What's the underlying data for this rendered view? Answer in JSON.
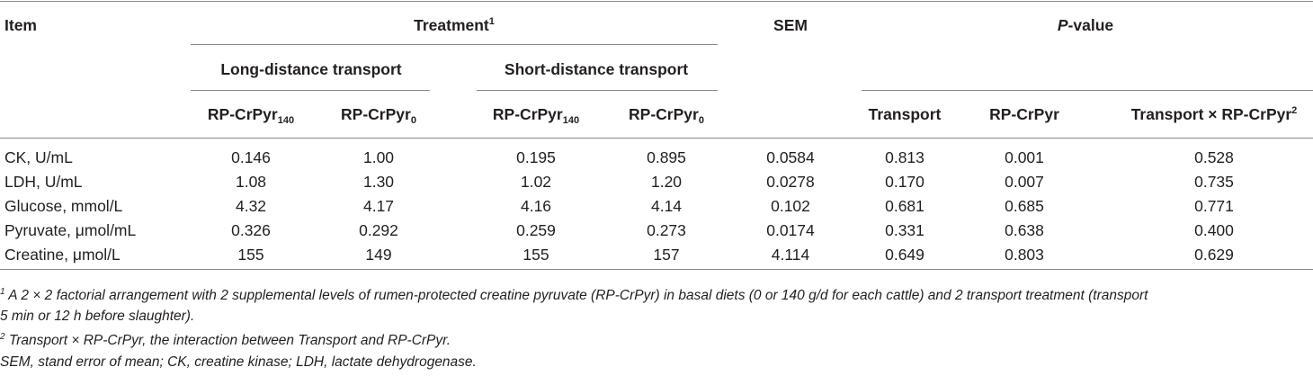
{
  "header": {
    "item": "Item",
    "treatment": "Treatment",
    "treatment_sup": "1",
    "sem": "SEM",
    "pvalue_p": "P",
    "pvalue_rest": "-value",
    "long_distance": "Long-distance transport",
    "short_distance": "Short-distance transport",
    "rp_base": "RP-CrPyr",
    "sub_140": "140",
    "sub_0": "0",
    "p_transport": "Transport",
    "p_rpcrpyr": "RP-CrPyr",
    "p_interaction": "Transport × RP-CrPyr",
    "interaction_sup": "2"
  },
  "rows": [
    {
      "item": "CK, U/mL",
      "long140": "0.146",
      "long0": "1.00",
      "short140": "0.195",
      "short0": "0.895",
      "sem": "0.0584",
      "p_transport": "0.813",
      "p_rp": "0.001",
      "p_int": "0.528"
    },
    {
      "item": "LDH, U/mL",
      "long140": "1.08",
      "long0": "1.30",
      "short140": "1.02",
      "short0": "1.20",
      "sem": "0.0278",
      "p_transport": "0.170",
      "p_rp": "0.007",
      "p_int": "0.735"
    },
    {
      "item": "Glucose, mmol/L",
      "long140": "4.32",
      "long0": "4.17",
      "short140": "4.16",
      "short0": "4.14",
      "sem": "0.102",
      "p_transport": "0.681",
      "p_rp": "0.685",
      "p_int": "0.771"
    },
    {
      "item": "Pyruvate, μmol/mL",
      "long140": "0.326",
      "long0": "0.292",
      "short140": "0.259",
      "short0": "0.273",
      "sem": "0.0174",
      "p_transport": "0.331",
      "p_rp": "0.638",
      "p_int": "0.400"
    },
    {
      "item": "Creatine, μmol/L",
      "long140": "155",
      "long0": "149",
      "short140": "155",
      "short0": "157",
      "sem": "4.114",
      "p_transport": "0.649",
      "p_rp": "0.803",
      "p_int": "0.629"
    }
  ],
  "footnotes": {
    "fn1_mark": "1",
    "fn1_line1": "A 2 × 2 factorial arrangement with 2 supplemental levels of rumen-protected creatine pyruvate (RP-CrPyr) in basal diets (0 or 140 g/d for each cattle) and 2 transport treatment (transport",
    "fn1_line2": "5 min or 12 h before slaughter).",
    "fn2_mark": "2",
    "fn2_text": "Transport × RP-CrPyr, the interaction between Transport and RP-CrPyr.",
    "abbrev": "SEM, stand error of mean; CK, creatine kinase; LDH, lactate dehydrogenase."
  }
}
